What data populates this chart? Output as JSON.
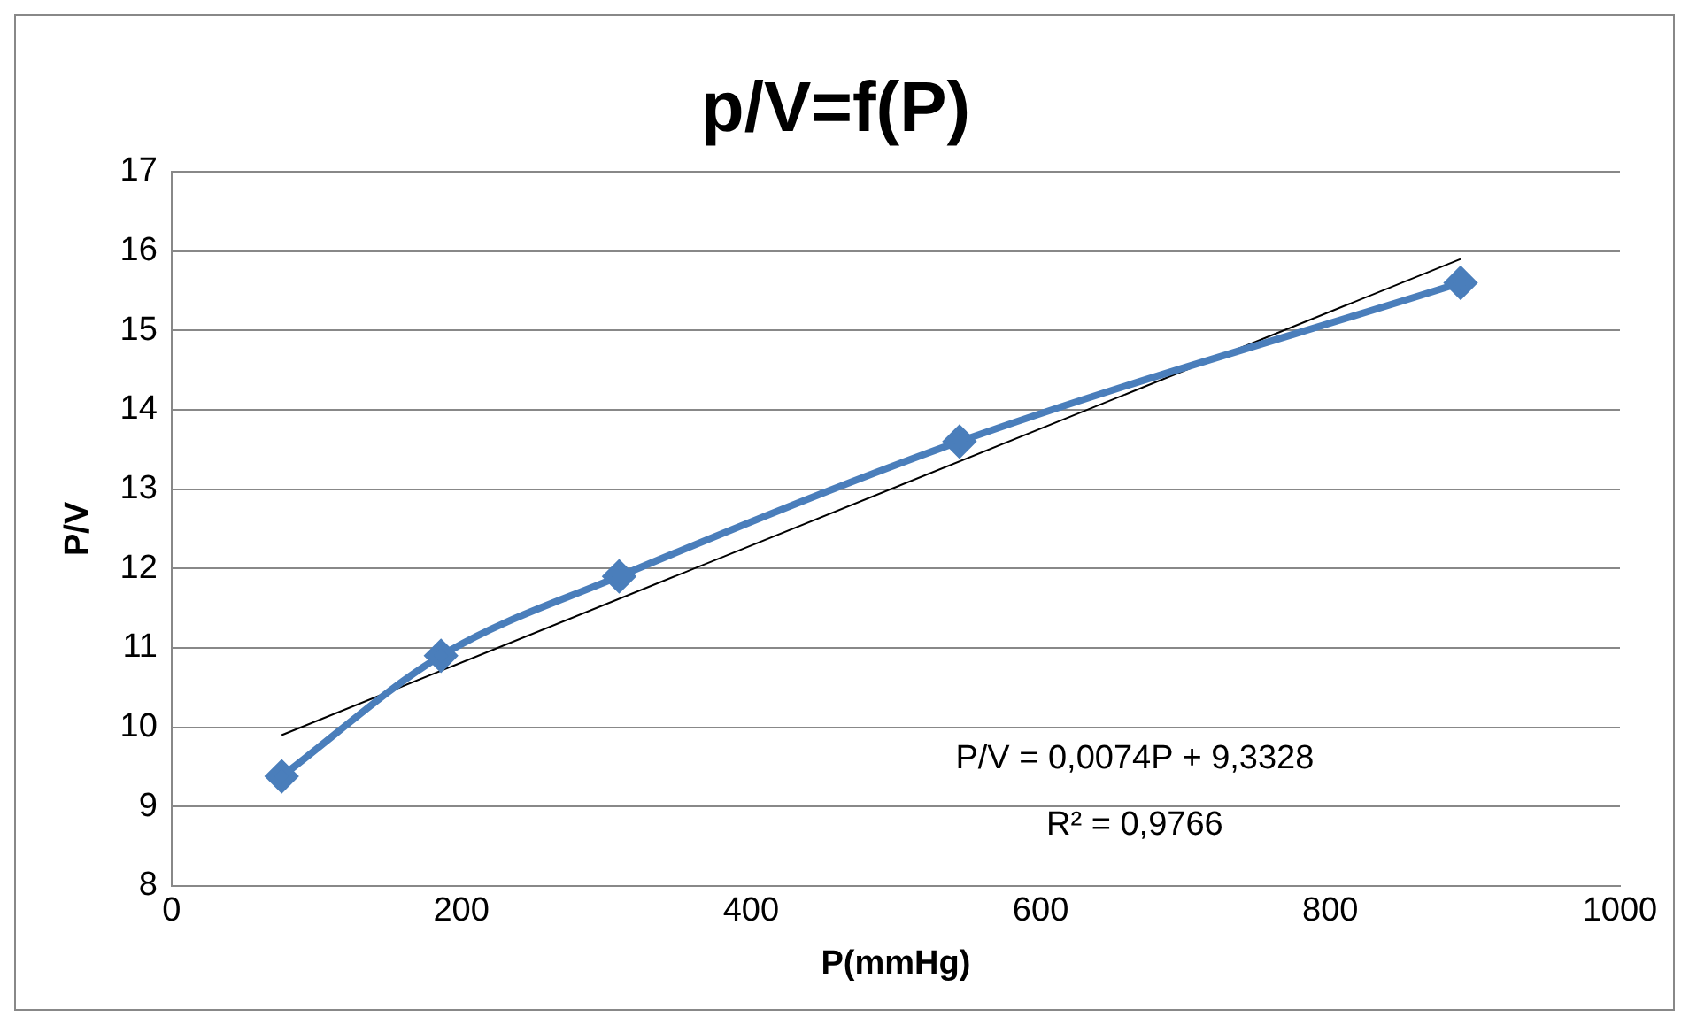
{
  "chart_data": {
    "type": "line",
    "title": "p/V=f(P)",
    "xlabel": "P(mmHg)",
    "ylabel": "P/V",
    "x": [
      76,
      186,
      309,
      544,
      890
    ],
    "series": [
      {
        "color": "#4a7ebb",
        "values": [
          9.38,
          10.9,
          11.9,
          13.6,
          15.6
        ],
        "marker": "diamond",
        "line_style": "solid"
      },
      {
        "type": "line",
        "color": "#000000",
        "x": [
          76,
          890
        ],
        "values": [
          9.9,
          15.9
        ],
        "marker": "none",
        "line_style": "solid"
      }
    ],
    "xlim": [
      0,
      1000
    ],
    "xticks": [
      0,
      200,
      400,
      600,
      800,
      1000
    ],
    "ylim": [
      8,
      17
    ],
    "yticks": [
      8,
      9,
      10,
      11,
      12,
      13,
      14,
      15,
      16,
      17
    ],
    "grid": "y",
    "legend": false,
    "annotations": [
      "P/V = 0,0074P + 9,3328",
      "R² = 0,9766"
    ]
  }
}
